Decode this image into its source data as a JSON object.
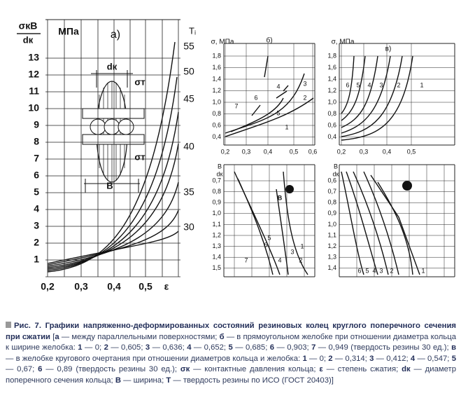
{
  "figure": {
    "panel_a": {
      "y_top": "σкB",
      "y_bottom": "dк",
      "unit": "МПа",
      "label": "а)",
      "right_title": "Tᵢ",
      "yticks": [
        "1",
        "2",
        "3",
        "4",
        "5",
        "6",
        "7",
        "8",
        "9",
        "10",
        "11",
        "12",
        "13"
      ],
      "right_ticks": [
        "55",
        "50",
        "45",
        "40",
        "35",
        "30"
      ],
      "xticks": [
        "0,2",
        "0,3",
        "0,4",
        "0,5",
        "ε"
      ],
      "inset": [
        "dк",
        "σт",
        "σт",
        "В"
      ]
    },
    "panel_b": {
      "y_title": "σ, МПа",
      "label": "б)",
      "yticks": [
        "1,8",
        "1,6",
        "1,4",
        "1,2",
        "1,0",
        "0,8",
        "0,6",
        "0,4"
      ],
      "xticks": [
        "0,2",
        "0,3",
        "0,4",
        "0,5",
        "0,6"
      ],
      "curves": [
        "7",
        "6",
        "5",
        "4",
        "3",
        "2",
        "1"
      ]
    },
    "panel_v": {
      "y_title": "σ, МПа",
      "label": "в)",
      "yticks": [
        "1,8",
        "1,6",
        "1,4",
        "1,2",
        "1,0",
        "0,8",
        "0,6",
        "0,4"
      ],
      "xticks": [
        "0,2",
        "0,3",
        "0,4",
        "0,5"
      ],
      "curves": [
        "6",
        "5",
        "4",
        "3",
        "2",
        "1"
      ]
    },
    "panel_c": {
      "y_top": "B",
      "y_bottom": "dк",
      "yticks": [
        "0,7",
        "0,8",
        "0,9",
        "1,0",
        "1,1",
        "1,2",
        "1,3",
        "1,4",
        "1,5"
      ],
      "curves": [
        "7",
        "6",
        "5",
        "4",
        "3",
        "2",
        "1"
      ],
      "inset": "В"
    },
    "panel_d": {
      "y_top": "B",
      "y_bottom": "dк",
      "yticks": [
        "0,6",
        "0,7",
        "0,8",
        "0,9",
        "1,0",
        "1,1",
        "1,2",
        "1,3",
        "1,4"
      ],
      "curves": [
        "6",
        "5",
        "4",
        "3",
        "2",
        "1"
      ]
    }
  },
  "caption": [
    {
      "text": "Рис. 7. Графики напряженно-деформированных состояний резиновых колец круглого поперечного сечения при сжатии",
      "bold": true
    },
    {
      "text": " [",
      "bold": false
    },
    {
      "text": "а",
      "bold": true
    },
    {
      "text": " — между параллельными поверхностями; ",
      "bold": false
    },
    {
      "text": "б",
      "bold": true
    },
    {
      "text": " — в прямоугольном желобке при отношении диаметра кольца к ширине желобка: ",
      "bold": false
    },
    {
      "text": "1",
      "bold": true
    },
    {
      "text": " — 0; ",
      "bold": false
    },
    {
      "text": "2",
      "bold": true
    },
    {
      "text": " — 0,605; ",
      "bold": false
    },
    {
      "text": "3",
      "bold": true
    },
    {
      "text": " — 0,636; ",
      "bold": false
    },
    {
      "text": "4",
      "bold": true
    },
    {
      "text": " — 0,652; ",
      "bold": false
    },
    {
      "text": "5",
      "bold": true
    },
    {
      "text": " — 0,685; ",
      "bold": false
    },
    {
      "text": "6",
      "bold": true
    },
    {
      "text": " — 0,903; ",
      "bold": false
    },
    {
      "text": "7",
      "bold": true
    },
    {
      "text": " — 0,949 (твердость резины 30 ед.); ",
      "bold": false
    },
    {
      "text": "в",
      "bold": true
    },
    {
      "text": " — в желобке кругового очертания при отношении диаметров кольца и желобка: ",
      "bold": false
    },
    {
      "text": "1",
      "bold": true
    },
    {
      "text": " — 0; ",
      "bold": false
    },
    {
      "text": "2",
      "bold": true
    },
    {
      "text": " — 0,314; ",
      "bold": false
    },
    {
      "text": "3",
      "bold": true
    },
    {
      "text": " — 0,412; ",
      "bold": false
    },
    {
      "text": "4",
      "bold": true
    },
    {
      "text": " — 0,547; ",
      "bold": false
    },
    {
      "text": "5",
      "bold": true
    },
    {
      "text": " — 0,67; ",
      "bold": false
    },
    {
      "text": "6",
      "bold": true
    },
    {
      "text": " — 0,89 (твердость резины 30 ед.); ",
      "bold": false
    },
    {
      "text": "σк",
      "bold": true
    },
    {
      "text": " — контактные давления кольца; ",
      "bold": false
    },
    {
      "text": "ε",
      "bold": true
    },
    {
      "text": " — степень сжатия; ",
      "bold": false
    },
    {
      "text": "dк",
      "bold": true
    },
    {
      "text": " — диаметр поперечного сечения кольца; ",
      "bold": false
    },
    {
      "text": "B",
      "bold": true
    },
    {
      "text": " — ширина; ",
      "bold": false
    },
    {
      "text": "T",
      "bold": true
    },
    {
      "text": " — твердость резины по ИСО (ГОСТ 20403)]",
      "bold": false
    }
  ]
}
